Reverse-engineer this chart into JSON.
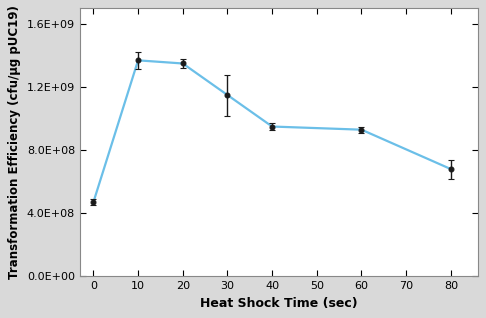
{
  "x": [
    0,
    10,
    20,
    30,
    40,
    60,
    80
  ],
  "y": [
    470000000.0,
    1370000000.0,
    1350000000.0,
    1150000000.0,
    950000000.0,
    930000000.0,
    680000000.0
  ],
  "yerr": [
    20000000.0,
    55000000.0,
    30000000.0,
    130000000.0,
    20000000.0,
    20000000.0,
    60000000.0
  ],
  "line_color": "#6BBFE8",
  "marker_color": "#1a1a1a",
  "marker_style": "o",
  "marker_size": 3.5,
  "line_width": 1.6,
  "xlabel": "Heat Shock Time (sec)",
  "ylabel": "Transformation Efficiency (cfu/µg pUC19)",
  "xlim": [
    -3,
    86
  ],
  "ylim": [
    0,
    1700000000.0
  ],
  "yticks": [
    0,
    400000000.0,
    800000000.0,
    1200000000.0,
    1600000000.0
  ],
  "xticks": [
    0,
    10,
    20,
    30,
    40,
    50,
    60,
    70,
    80
  ],
  "xlabel_fontsize": 9,
  "ylabel_fontsize": 8.5,
  "tick_fontsize": 8,
  "background_color": "#d9d9d9",
  "plot_bg_color": "#ffffff",
  "capsize": 2.5,
  "ecolor": "#1a1a1a",
  "elinewidth": 1.0
}
